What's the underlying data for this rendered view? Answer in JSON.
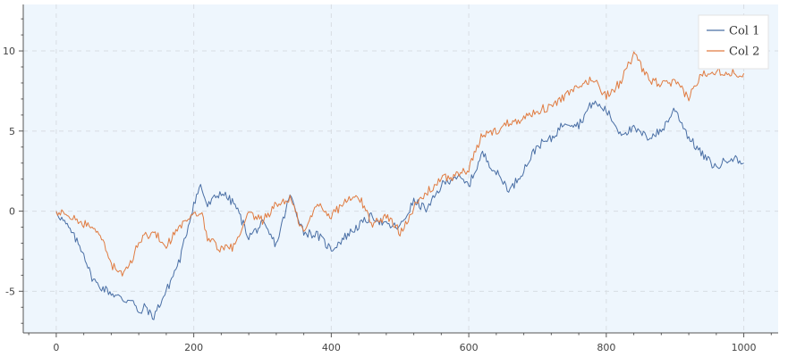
{
  "chart_data": {
    "type": "line",
    "title": "",
    "xlabel": "",
    "ylabel": "",
    "xlim": [
      -48,
      1050
    ],
    "ylim": [
      -7.6,
      12.9
    ],
    "x_ticks": [
      0,
      200,
      400,
      600,
      800,
      1000
    ],
    "x_tick_labels": [
      "0",
      "200",
      "400",
      "600",
      "800",
      "1000"
    ],
    "y_ticks": [
      -5,
      0,
      5,
      10
    ],
    "y_tick_labels": [
      "-5",
      "0",
      "5",
      "10"
    ],
    "grid": true,
    "legend_position": "top-right",
    "background_color": "#eef6fd",
    "series": [
      {
        "name": "Col 1",
        "color": "#4a6fa5",
        "x": [
          0,
          20,
          40,
          50,
          60,
          80,
          100,
          110,
          120,
          130,
          140,
          160,
          180,
          200,
          210,
          220,
          230,
          240,
          260,
          280,
          300,
          320,
          340,
          360,
          380,
          400,
          420,
          440,
          460,
          480,
          500,
          520,
          540,
          560,
          580,
          600,
          620,
          640,
          660,
          680,
          700,
          720,
          740,
          760,
          780,
          800,
          820,
          840,
          860,
          880,
          900,
          920,
          940,
          960,
          980,
          1000
        ],
        "values": [
          0,
          -1.2,
          -2.6,
          -4.0,
          -4.6,
          -5.1,
          -5.6,
          -5.4,
          -6.5,
          -5.9,
          -6.7,
          -5.0,
          -3.0,
          0.5,
          1.6,
          0.3,
          0.8,
          1.2,
          0.4,
          -1.6,
          -0.8,
          -2.1,
          1.0,
          -1.3,
          -1.5,
          -2.4,
          -1.6,
          -0.9,
          -0.3,
          -0.9,
          -1.0,
          0.6,
          0.1,
          1.6,
          2.2,
          1.6,
          3.6,
          2.4,
          1.3,
          2.6,
          4.1,
          4.5,
          5.6,
          5.4,
          6.8,
          6.3,
          4.9,
          5.1,
          4.6,
          5.0,
          6.4,
          4.6,
          3.5,
          2.7,
          3.4,
          3.0
        ]
      },
      {
        "name": "Col 2",
        "color": "#e07b40",
        "x": [
          0,
          20,
          40,
          60,
          70,
          80,
          90,
          100,
          110,
          120,
          140,
          160,
          180,
          200,
          210,
          220,
          240,
          260,
          280,
          300,
          320,
          340,
          360,
          380,
          400,
          420,
          440,
          460,
          480,
          500,
          520,
          540,
          560,
          580,
          600,
          620,
          640,
          660,
          680,
          700,
          720,
          740,
          760,
          780,
          800,
          820,
          840,
          860,
          880,
          900,
          920,
          940,
          960,
          980,
          1000
        ],
        "values": [
          0,
          -0.4,
          -0.8,
          -1.1,
          -2.2,
          -3.3,
          -3.8,
          -3.9,
          -3.1,
          -1.8,
          -1.3,
          -2.1,
          -1.0,
          -0.3,
          0.0,
          -1.6,
          -2.4,
          -2.2,
          -0.2,
          -0.6,
          0.4,
          0.8,
          -1.4,
          0.5,
          -0.3,
          0.6,
          0.9,
          -0.8,
          -0.3,
          -1.3,
          0.2,
          1.2,
          2.0,
          2.2,
          2.6,
          4.8,
          5.0,
          5.6,
          5.8,
          6.3,
          6.5,
          7.2,
          7.7,
          8.3,
          7.2,
          8.0,
          9.8,
          8.3,
          7.9,
          8.0,
          7.1,
          8.6,
          8.8,
          8.6,
          8.6
        ]
      }
    ]
  }
}
